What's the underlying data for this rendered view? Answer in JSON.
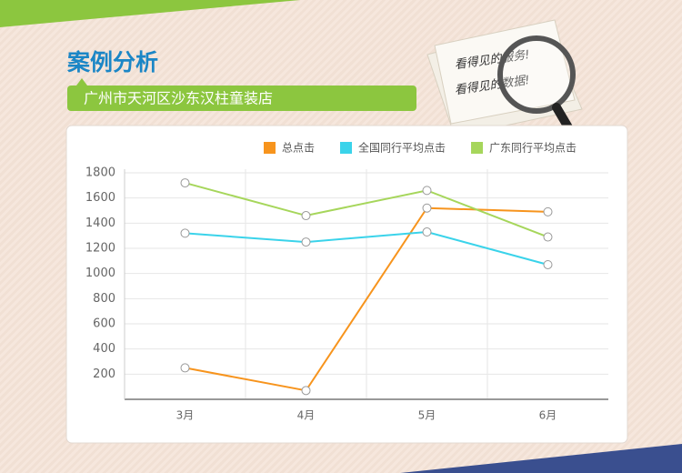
{
  "header": {
    "title": "案例分析",
    "subtitle": "广州市天河区沙东汉柱童装店"
  },
  "badge": {
    "lines": [
      "看得见的服务!",
      "看得见的数据!"
    ]
  },
  "chart_data": {
    "type": "line",
    "categories": [
      "3月",
      "4月",
      "5月",
      "6月"
    ],
    "series": [
      {
        "name": "总点击",
        "color": "#f7941d",
        "values": [
          250,
          70,
          1520,
          1490
        ]
      },
      {
        "name": "全国同行平均点击",
        "color": "#3ad3ea",
        "values": [
          1320,
          1250,
          1330,
          1070
        ]
      },
      {
        "name": "广东同行平均点击",
        "color": "#a6d65b",
        "values": [
          1720,
          1460,
          1660,
          1290
        ]
      }
    ],
    "ylim": [
      0,
      1800
    ],
    "yticks": [
      200,
      400,
      600,
      800,
      1000,
      1200,
      1400,
      1600,
      1800
    ],
    "grid": true,
    "legend": "top-right"
  }
}
